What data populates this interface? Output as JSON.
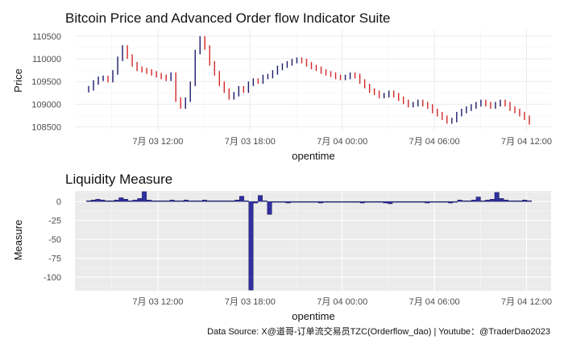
{
  "caption": "Data Source: X@道哥-订单流交易员TZC(Orderflow_dao) | Youtube：@TraderDao2023",
  "colors": {
    "up": "#1b1b6b",
    "down": "#d62728",
    "bar_fill": "#3030a0",
    "bar_stroke": "#1a1a5a",
    "panel_bg": "#ebebeb",
    "grid": "#ffffff",
    "grid_light": "#ebebeb"
  },
  "chart_data": [
    {
      "type": "candlestick",
      "title": "Bitcoin Price and Advanced Order flow Indicator Suite",
      "xlabel": "opentime",
      "ylabel": "Price",
      "x_ticks": [
        {
          "label": "7月 03 12:00",
          "hour": 12
        },
        {
          "label": "7月 03 18:00",
          "hour": 18
        },
        {
          "label": "7月 04 00:00",
          "hour": 24
        },
        {
          "label": "7月 04 06:00",
          "hour": 30
        },
        {
          "label": "7月 04 12:00",
          "hour": 36
        }
      ],
      "x_range_hours": [
        6.6,
        37.6
      ],
      "ylim": [
        108420,
        110640
      ],
      "y_ticks": [
        108500,
        109000,
        109500,
        110000,
        110500
      ],
      "grid": true,
      "values": [
        109350,
        109480,
        109560,
        109580,
        109530,
        109700,
        110000,
        110250,
        110050,
        109880,
        109780,
        109750,
        109720,
        109680,
        109640,
        109600,
        109560,
        109650,
        109100,
        108950,
        109100,
        109450,
        110150,
        110450,
        110250,
        109900,
        109680,
        109450,
        109300,
        109150,
        109220,
        109350,
        109300,
        109450,
        109520,
        109500,
        109600,
        109620,
        109700,
        109800,
        109850,
        109900,
        109950,
        109980,
        109950,
        109880,
        109820,
        109780,
        109720,
        109680,
        109650,
        109600,
        109580,
        109600,
        109650,
        109620,
        109500,
        109400,
        109300,
        109250,
        109180,
        109200,
        109250,
        109200,
        109120,
        109050,
        108980,
        109000,
        109050,
        109000,
        108950,
        108850,
        108780,
        108700,
        108620,
        108650,
        108780,
        108850,
        108900,
        108950,
        109000,
        109050,
        109000,
        108950,
        109000,
        109050,
        109000,
        108900,
        108850,
        108780,
        108700,
        108600
      ]
    },
    {
      "type": "bar",
      "title": "Liquidity Measure",
      "xlabel": "opentime",
      "ylabel": "Measure",
      "x_ticks": [
        {
          "label": "7月 03 12:00",
          "hour": 12
        },
        {
          "label": "7月 03 18:00",
          "hour": 18
        },
        {
          "label": "7月 04 00:00",
          "hour": 24
        },
        {
          "label": "7月 04 06:00",
          "hour": 30
        },
        {
          "label": "7月 04 12:00",
          "hour": 36
        }
      ],
      "x_range_hours": [
        6.6,
        37.6
      ],
      "ylim": [
        -118,
        14
      ],
      "y_ticks": [
        0,
        -25,
        -50,
        -75,
        -100
      ],
      "grid": true,
      "values": [
        1,
        2,
        3,
        2,
        1,
        1,
        2,
        5,
        3,
        1,
        2,
        4,
        13,
        2,
        1,
        1,
        1,
        1,
        2,
        1,
        1,
        2,
        1,
        1,
        1,
        2,
        1,
        1,
        1,
        1,
        1,
        1,
        2,
        7,
        1,
        -117,
        -2,
        8,
        1,
        -17,
        -1,
        -1,
        -1,
        -2,
        -1,
        -1,
        -1,
        -1,
        -1,
        -1,
        -2,
        -1,
        -1,
        -1,
        -1,
        -1,
        -1,
        -1,
        -1,
        -2,
        -1,
        -1,
        -1,
        -1,
        -2,
        -3,
        -1,
        -1,
        -1,
        -1,
        -1,
        -1,
        -1,
        -2,
        -1,
        -1,
        -1,
        -1,
        -2,
        -1,
        2,
        1,
        1,
        2,
        6,
        1,
        2,
        3,
        12,
        4,
        2,
        1,
        1,
        1,
        2,
        1
      ]
    }
  ]
}
